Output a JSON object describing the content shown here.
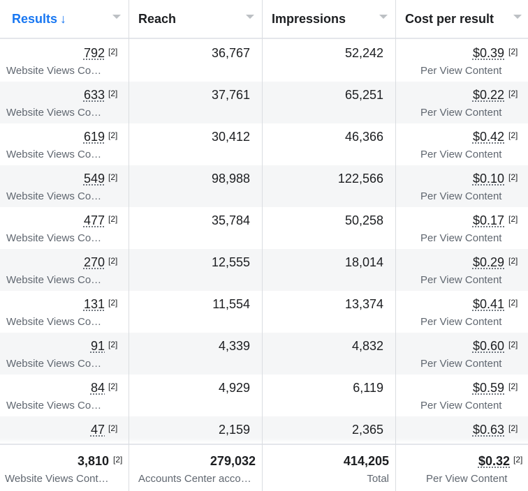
{
  "header": {
    "columns": [
      {
        "label": "Results",
        "sort_arrow": "↓"
      },
      {
        "label": "Reach"
      },
      {
        "label": "Impressions"
      },
      {
        "label": "Cost per result"
      }
    ]
  },
  "ref_marker": "[2]",
  "rows": [
    {
      "results": "792",
      "results_sub": "Website Views Co…",
      "reach": "36,767",
      "impressions": "52,242",
      "cost": "$0.39",
      "cost_sub": "Per View Content"
    },
    {
      "results": "633",
      "results_sub": "Website Views Co…",
      "reach": "37,761",
      "impressions": "65,251",
      "cost": "$0.22",
      "cost_sub": "Per View Content"
    },
    {
      "results": "619",
      "results_sub": "Website Views Co…",
      "reach": "30,412",
      "impressions": "46,366",
      "cost": "$0.42",
      "cost_sub": "Per View Content"
    },
    {
      "results": "549",
      "results_sub": "Website Views Co…",
      "reach": "98,988",
      "impressions": "122,566",
      "cost": "$0.10",
      "cost_sub": "Per View Content"
    },
    {
      "results": "477",
      "results_sub": "Website Views Co…",
      "reach": "35,784",
      "impressions": "50,258",
      "cost": "$0.17",
      "cost_sub": "Per View Content"
    },
    {
      "results": "270",
      "results_sub": "Website Views Co…",
      "reach": "12,555",
      "impressions": "18,014",
      "cost": "$0.29",
      "cost_sub": "Per View Content"
    },
    {
      "results": "131",
      "results_sub": "Website Views Co…",
      "reach": "11,554",
      "impressions": "13,374",
      "cost": "$0.41",
      "cost_sub": "Per View Content"
    },
    {
      "results": "91",
      "results_sub": "Website Views Co…",
      "reach": "4,339",
      "impressions": "4,832",
      "cost": "$0.60",
      "cost_sub": "Per View Content"
    },
    {
      "results": "84",
      "results_sub": "Website Views Co…",
      "reach": "4,929",
      "impressions": "6,119",
      "cost": "$0.59",
      "cost_sub": "Per View Content"
    },
    {
      "results": "47",
      "results_sub": "",
      "reach": "2,159",
      "impressions": "2,365",
      "cost": "$0.63",
      "cost_sub": ""
    }
  ],
  "totals": {
    "results": "3,810",
    "results_sub": "Website Views Cont…",
    "reach": "279,032",
    "reach_sub": "Accounts Center acco…",
    "impressions": "414,205",
    "impressions_sub": "Total",
    "cost": "$0.32",
    "cost_sub": "Per View Content"
  },
  "colors": {
    "accent": "#1877f2",
    "row_alt": "#f5f6f7",
    "muted": "#606770"
  }
}
